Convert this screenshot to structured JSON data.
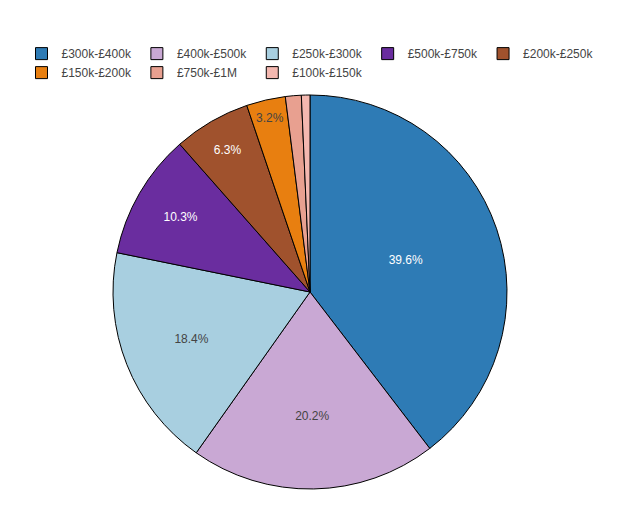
{
  "chart_data": {
    "type": "pie",
    "categories": [
      "£300k-£400k",
      "£400k-£500k",
      "£250k-£300k",
      "£500k-£750k",
      "£200k-£250k",
      "£150k-£200k",
      "£750k-£1M",
      "£100k-£150k"
    ],
    "values": [
      39.6,
      20.2,
      18.4,
      10.3,
      6.3,
      3.2,
      1.3,
      0.7
    ],
    "value_labels": [
      "39.6%",
      "20.2%",
      "18.4%",
      "10.3%",
      "6.3%",
      "3.2%",
      null,
      null
    ],
    "colors": [
      "#2e7bb5",
      "#c9a8d4",
      "#a8cfe0",
      "#6a2d9f",
      "#a0522d",
      "#e87f10",
      "#e8a090",
      "#f4b8b0"
    ],
    "data_labels": true,
    "legend": "top"
  }
}
